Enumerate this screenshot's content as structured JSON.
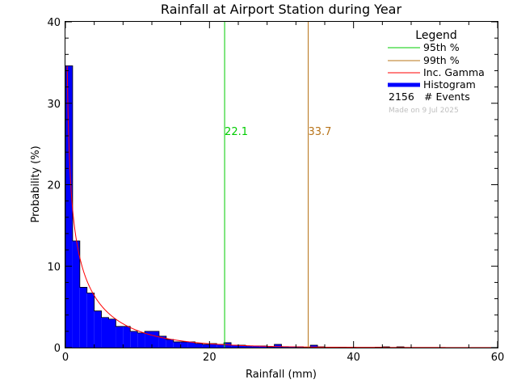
{
  "chart_data": {
    "type": "bar",
    "title": "Rainfall at Airport Station during Year",
    "xlabel": "Rainfall (mm)",
    "ylabel": "Probability (%)",
    "xlim": [
      0,
      60
    ],
    "ylim": [
      0,
      40
    ],
    "x_ticks": [
      "0",
      "20",
      "40",
      "60"
    ],
    "y_ticks": [
      "0",
      "10",
      "20",
      "30",
      "40"
    ],
    "bin_width": 1,
    "histogram": {
      "name": "Histogram",
      "color": "#0000ff",
      "bin_starts": [
        0,
        1,
        2,
        3,
        4,
        5,
        6,
        7,
        8,
        9,
        10,
        11,
        12,
        13,
        14,
        15,
        16,
        17,
        18,
        19,
        20,
        21,
        22,
        23,
        24,
        25,
        26,
        27,
        28,
        29,
        30,
        31,
        32,
        33,
        34,
        35,
        36,
        37,
        38,
        39,
        40,
        41,
        42,
        43,
        44,
        45,
        46,
        47,
        48,
        49,
        50,
        51,
        52,
        53,
        54,
        55,
        56,
        57,
        58,
        59
      ],
      "values": [
        34.6,
        13.1,
        7.4,
        6.7,
        4.5,
        3.7,
        3.5,
        2.6,
        2.6,
        2.0,
        1.8,
        2.0,
        2.0,
        1.4,
        1.0,
        0.7,
        0.7,
        0.7,
        0.5,
        0.4,
        0.5,
        0.4,
        0.6,
        0.3,
        0.3,
        0.2,
        0.2,
        0.2,
        0.1,
        0.4,
        0.1,
        0.1,
        0.1,
        0.0,
        0.3,
        0.1,
        0.05,
        0.05,
        0.05,
        0.0,
        0.0,
        0.0,
        0.0,
        0.05,
        0.1,
        0.0,
        0.1,
        0.0,
        0.0,
        0.0,
        0.0,
        0.0,
        0.0,
        0.0,
        0.0,
        0.0,
        0.0,
        0.0,
        0.0,
        0.0
      ]
    },
    "gamma_curve": {
      "name": "Inc. Gamma",
      "color": "#ff0000",
      "shape": 0.55,
      "scale": 8.5,
      "x_start": 0.25,
      "x_end": 60
    },
    "percentile_lines": [
      {
        "name": "95th %",
        "value": 22.1,
        "label": "22.1",
        "color": "#00cc00"
      },
      {
        "name": "99th %",
        "value": 33.7,
        "label": "33.7",
        "color": "#b8741a"
      }
    ],
    "legend": {
      "title": "Legend",
      "events_count": "2156",
      "events_label": "# Events",
      "position": "top-right"
    },
    "credit": "Made on 9 Jul 2025"
  }
}
